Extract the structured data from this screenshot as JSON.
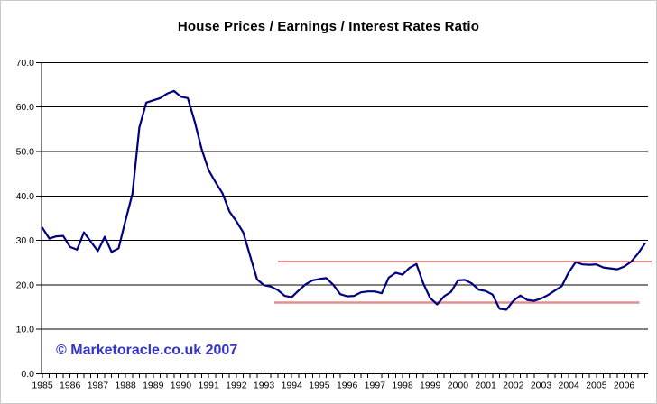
{
  "title": "House Prices  / Earnings / Interest Rates Ratio",
  "copyright": "© Marketoracle.co.uk 2007",
  "colors": {
    "background": "#ffffff",
    "border": "#c9c9c9",
    "title_text": "#000000",
    "copyright_text": "#3333cc",
    "grid": "#000000",
    "axis": "#000000",
    "series_line": "#000080",
    "upper_reference": "#bb2222",
    "lower_reference": "#e08f8f"
  },
  "chart_data": {
    "type": "line",
    "title": "House Prices  / Earnings / Interest Rates Ratio",
    "frequency": "quarterly",
    "x_start": "1985-Q1",
    "x_end": "2006-Q4",
    "xlabel": "",
    "ylabel": "",
    "ylim": [
      0,
      70
    ],
    "y_step": 10,
    "grid": "horizontal",
    "legend_position": "none",
    "y_tick_labels": [
      "0.0",
      "10.0",
      "20.0",
      "30.0",
      "40.0",
      "50.0",
      "60.0",
      "70.0"
    ],
    "x_year_labels": [
      "1985",
      "1986",
      "1987",
      "1988",
      "1989",
      "1990",
      "1991",
      "1992",
      "1993",
      "1994",
      "1995",
      "1996",
      "1997",
      "1998",
      "1999",
      "2000",
      "2001",
      "2002",
      "2003",
      "2004",
      "2005",
      "2006"
    ],
    "series": [
      {
        "name": "House Prices / Earnings / Interest Rates Ratio",
        "color": "#000080",
        "values": [
          32.8,
          30.4,
          30.9,
          31.0,
          28.5,
          27.9,
          31.8,
          29.7,
          27.6,
          30.8,
          27.4,
          28.2,
          34.5,
          40.5,
          55.4,
          61.0,
          61.5,
          62.0,
          63.0,
          63.6,
          62.3,
          62.0,
          56.7,
          50.5,
          45.8,
          43.1,
          40.6,
          36.5,
          34.3,
          31.8,
          26.5,
          21.2,
          19.9,
          19.6,
          18.8,
          17.5,
          17.2,
          18.7,
          20.1,
          21.0,
          21.3,
          21.5,
          20.0,
          17.9,
          17.4,
          17.5,
          18.3,
          18.5,
          18.5,
          18.1,
          21.6,
          22.7,
          22.3,
          23.8,
          24.7,
          20.3,
          17.0,
          15.6,
          17.4,
          18.4,
          21.0,
          21.1,
          20.3,
          18.9,
          18.6,
          17.8,
          14.6,
          14.4,
          16.4,
          17.6,
          16.6,
          16.4,
          16.9,
          17.7,
          18.7,
          19.7,
          22.8,
          25.1,
          24.6,
          24.5,
          24.6,
          23.9,
          23.7,
          23.5,
          24.1,
          25.2,
          27.0,
          29.3
        ]
      }
    ],
    "reference_lines": [
      {
        "name": "upper-band-line",
        "value": 25.2,
        "color": "#bb2222",
        "width": 1.5,
        "start_q": 34.0,
        "end_q": 88.0
      },
      {
        "name": "lower-band-line",
        "value": 16.0,
        "color": "#e08f8f",
        "width": 2.5,
        "start_q": 33.5,
        "end_q": 86.2
      }
    ]
  }
}
